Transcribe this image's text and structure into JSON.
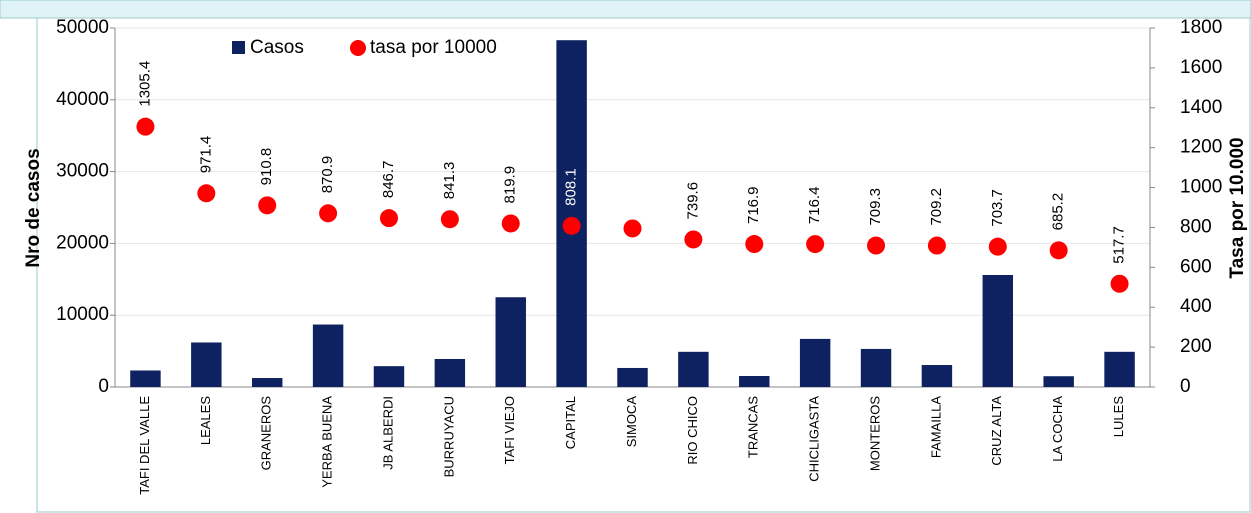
{
  "chart_data": {
    "type": "bar-scatter",
    "categories": [
      "TAFI DEL VALLE",
      "LEALES",
      "GRANEROS",
      "YERBA BUENA",
      "JB ALBERDI",
      "BURRUYACU",
      "TAFI VIEJO",
      "CAPITAL",
      "SIMOCA",
      "RIO CHICO",
      "TRANCAS",
      "CHICLIGASTA",
      "MONTEROS",
      "FAMAILLA",
      "CRUZ ALTA",
      "LA COCHA",
      "LULES"
    ],
    "series": [
      {
        "name": "Casos",
        "color": "#0e2160",
        "values": [
          2300,
          6200,
          1250,
          8700,
          2900,
          3900,
          12500,
          48300,
          2650,
          4900,
          1530,
          6700,
          5300,
          3060,
          15600,
          1500,
          4900
        ]
      },
      {
        "name": "tasa por 10000",
        "color": "#ff0000",
        "axis": "y2",
        "values": [
          1305.4,
          971.4,
          910.8,
          870.9,
          846.7,
          841.3,
          819.9,
          808.1,
          795,
          739.6,
          716.9,
          716.4,
          709.3,
          709.2,
          703.7,
          685.2,
          517.7
        ],
        "value_labels": [
          "1305.4",
          "971.4",
          "910.8",
          "870.9",
          "846.7",
          "841.3",
          "819.9",
          "808.1",
          null,
          "739.6",
          "716.9",
          "716.4",
          "709.3",
          "709.2",
          "703.7",
          "685.2",
          "517.7"
        ]
      }
    ],
    "y_label": "Nro de casos",
    "y2_label": "Tasa por 10.000",
    "ylim": [
      0,
      50000
    ],
    "yticks": [
      0,
      10000,
      20000,
      30000,
      40000,
      50000
    ],
    "y2lim": [
      0,
      1800
    ],
    "y2ticks": [
      0,
      200,
      400,
      600,
      800,
      1000,
      1200,
      1400,
      1600,
      1800
    ],
    "grid": true
  }
}
